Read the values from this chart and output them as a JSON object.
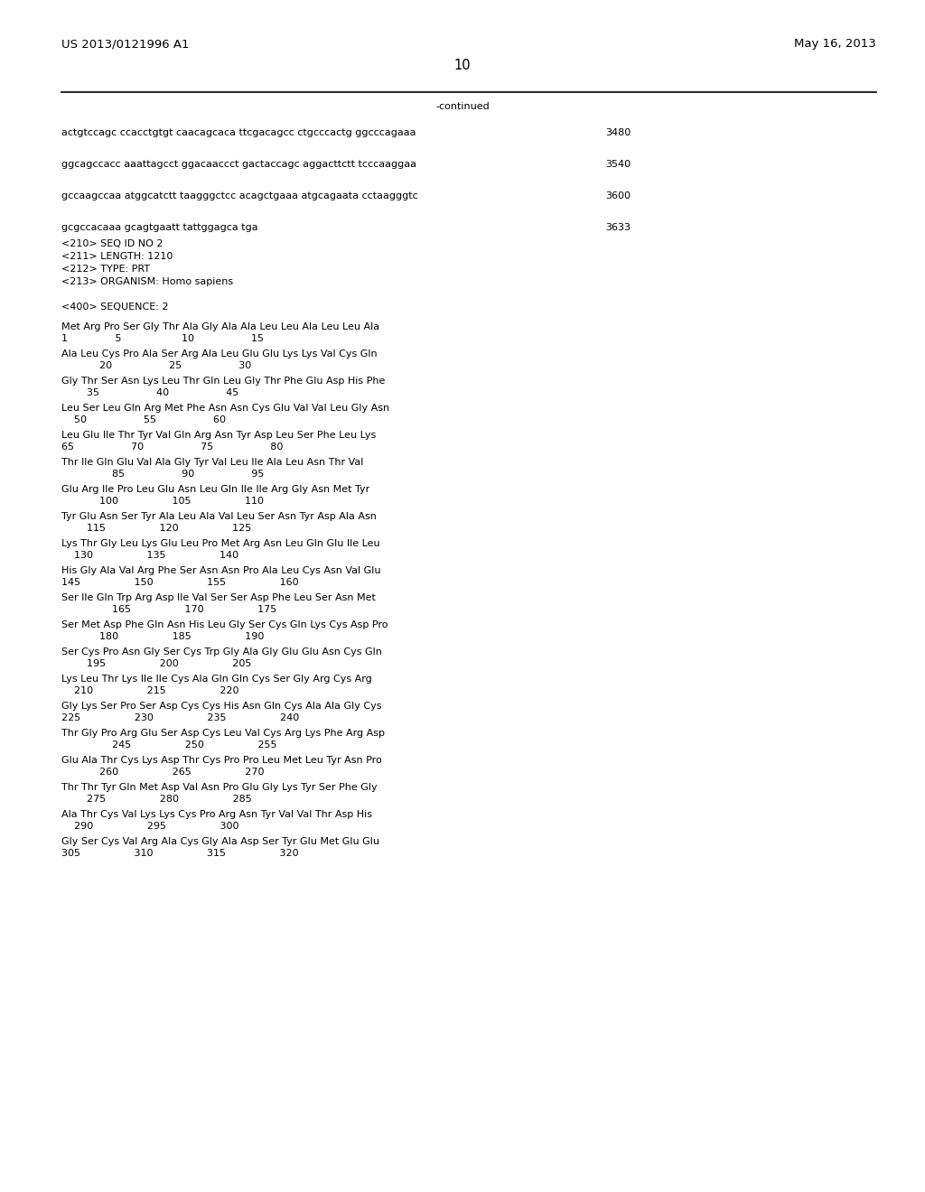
{
  "patent_left": "US 2013/0121996 A1",
  "patent_right": "May 16, 2013",
  "page_number": "10",
  "continued_label": "-continued",
  "background_color": "#ffffff",
  "text_color": "#000000",
  "dna_lines": [
    {
      "seq": "actgtccagc ccacctgtgt caacagcaca ttcgacagcc ctgcccactg ggcccagaaa",
      "num": "3480"
    },
    {
      "seq": "ggcagccacc aaattagcct ggacaaccct gactaccagc aggacttctt tcccaaggaa",
      "num": "3540"
    },
    {
      "seq": "gccaagccaa atggcatctt taagggctcc acagctgaaa atgcagaata cctaagggtc",
      "num": "3600"
    },
    {
      "seq": "gcgccacaaa gcagtgaatt tattggagca tga",
      "num": "3633"
    }
  ],
  "meta_lines": [
    "<210> SEQ ID NO 2",
    "<211> LENGTH: 1210",
    "<212> TYPE: PRT",
    "<213> ORGANISM: Homo sapiens"
  ],
  "seq_label": "<400> SEQUENCE: 2",
  "protein_blocks": [
    {
      "seq": "Met Arg Pro Ser Gly Thr Ala Gly Ala Ala Leu Leu Ala Leu Leu Ala",
      "nums": "1               5                   10                  15"
    },
    {
      "seq": "Ala Leu Cys Pro Ala Ser Arg Ala Leu Glu Glu Lys Lys Val Cys Gln",
      "nums": "            20                  25                  30"
    },
    {
      "seq": "Gly Thr Ser Asn Lys Leu Thr Gln Leu Gly Thr Phe Glu Asp His Phe",
      "nums": "        35                  40                  45"
    },
    {
      "seq": "Leu Ser Leu Gln Arg Met Phe Asn Asn Cys Glu Val Val Leu Gly Asn",
      "nums": "    50                  55                  60"
    },
    {
      "seq": "Leu Glu Ile Thr Tyr Val Gln Arg Asn Tyr Asp Leu Ser Phe Leu Lys",
      "nums": "65                  70                  75                  80"
    },
    {
      "seq": "Thr Ile Gln Glu Val Ala Gly Tyr Val Leu Ile Ala Leu Asn Thr Val",
      "nums": "                85                  90                  95"
    },
    {
      "seq": "Glu Arg Ile Pro Leu Glu Asn Leu Gln Ile Ile Arg Gly Asn Met Tyr",
      "nums": "            100                 105                 110"
    },
    {
      "seq": "Tyr Glu Asn Ser Tyr Ala Leu Ala Val Leu Ser Asn Tyr Asp Ala Asn",
      "nums": "        115                 120                 125"
    },
    {
      "seq": "Lys Thr Gly Leu Lys Glu Leu Pro Met Arg Asn Leu Gln Glu Ile Leu",
      "nums": "    130                 135                 140"
    },
    {
      "seq": "His Gly Ala Val Arg Phe Ser Asn Asn Pro Ala Leu Cys Asn Val Glu",
      "nums": "145                 150                 155                 160"
    },
    {
      "seq": "Ser Ile Gln Trp Arg Asp Ile Val Ser Ser Asp Phe Leu Ser Asn Met",
      "nums": "                165                 170                 175"
    },
    {
      "seq": "Ser Met Asp Phe Gln Asn His Leu Gly Ser Cys Gln Lys Cys Asp Pro",
      "nums": "            180                 185                 190"
    },
    {
      "seq": "Ser Cys Pro Asn Gly Ser Cys Trp Gly Ala Gly Glu Glu Asn Cys Gln",
      "nums": "        195                 200                 205"
    },
    {
      "seq": "Lys Leu Thr Lys Ile Ile Cys Ala Gln Gln Cys Ser Gly Arg Cys Arg",
      "nums": "    210                 215                 220"
    },
    {
      "seq": "Gly Lys Ser Pro Ser Asp Cys Cys His Asn Gln Cys Ala Ala Gly Cys",
      "nums": "225                 230                 235                 240"
    },
    {
      "seq": "Thr Gly Pro Arg Glu Ser Asp Cys Leu Val Cys Arg Lys Phe Arg Asp",
      "nums": "                245                 250                 255"
    },
    {
      "seq": "Glu Ala Thr Cys Lys Asp Thr Cys Pro Pro Leu Met Leu Tyr Asn Pro",
      "nums": "            260                 265                 270"
    },
    {
      "seq": "Thr Thr Tyr Gln Met Asp Val Asn Pro Glu Gly Lys Tyr Ser Phe Gly",
      "nums": "        275                 280                 285"
    },
    {
      "seq": "Ala Thr Cys Val Lys Lys Cys Pro Arg Asn Tyr Val Val Thr Asp His",
      "nums": "    290                 295                 300"
    },
    {
      "seq": "Gly Ser Cys Val Arg Ala Cys Gly Ala Asp Ser Tyr Glu Met Glu Glu",
      "nums": "305                 310                 315                 320"
    }
  ]
}
